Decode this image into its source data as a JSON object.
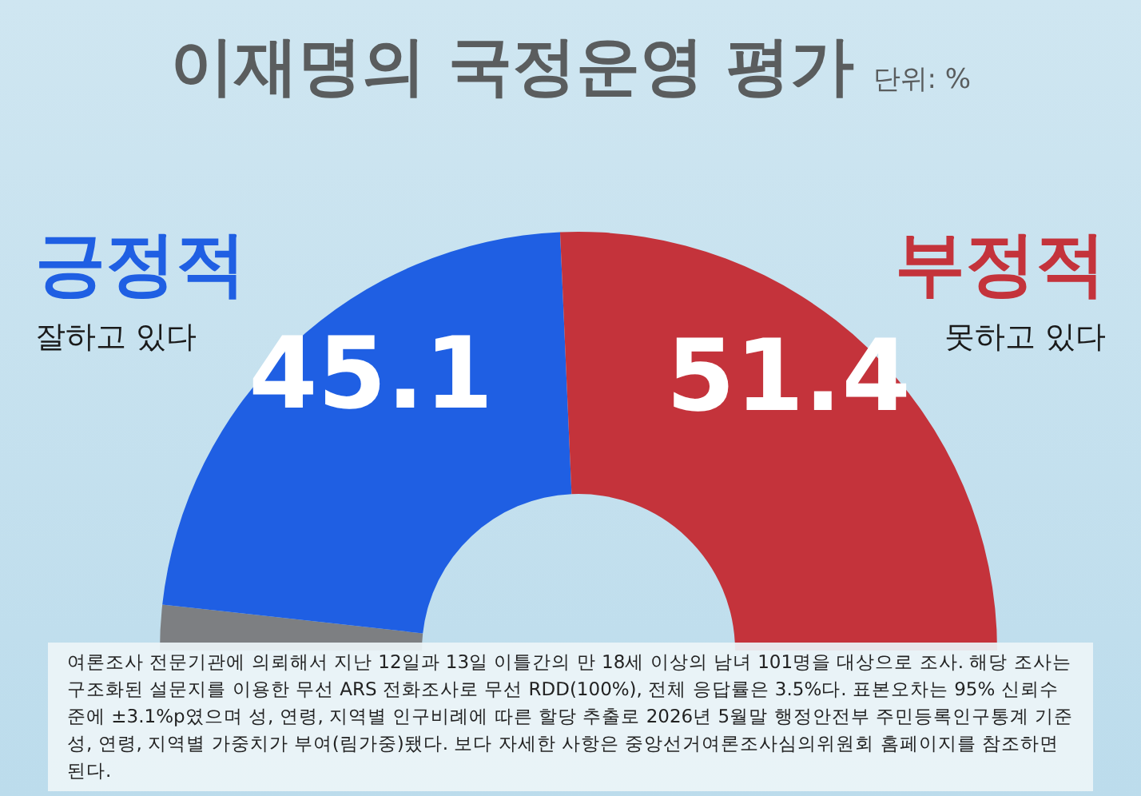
{
  "chart_data": {
    "type": "donut",
    "title": "이재명의 국정운영 평가",
    "subtitle": "단위: %",
    "categories": [
      null,
      "긍정적",
      "부정적"
    ],
    "values": [
      3.5,
      45.1,
      51.4
    ],
    "colors": [
      "#7d7f82",
      "#1f5fe3",
      "#c4333b"
    ],
    "value_labels": [
      null,
      "45.1",
      "51.4"
    ],
    "annotations": [
      "잘하고 있다",
      "못하고 있다",
      "여론조사 전문기관에 의뢰해서 지난 12일과 13일 이틀간의 만 18세 이상의 남녀 101명을 대상으로 조사. 해당 조사는 구조화된 설문지를 이용한 무선 ARS 전화조사로 무선 RDD(100%), 전체 응답률은 3.5%다. 표본오차는 95% 신뢰수준에 ±3.1%p였으며 성, 연령, 지역별 인구비례에 따른 할당 추출로 2026년 5월말 행정안전부 주민등록인구통계 기준 성, 연령, 지역별 가중치가 부여(림가중)됐다. 보다 자세한 사항은 중앙선거여론조사심의위원회 홈페이지를 참조하면 된다."
    ]
  }
}
